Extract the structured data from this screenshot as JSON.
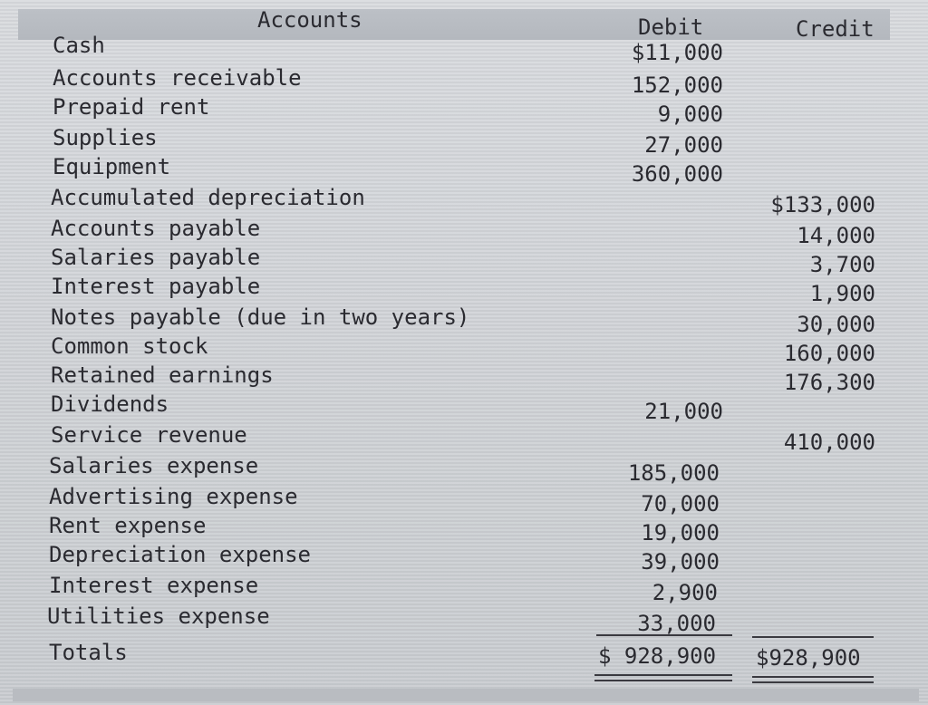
{
  "header": {
    "accounts": "Accounts",
    "debit": "Debit",
    "credit": "Credit"
  },
  "rows": [
    {
      "account": "Cash",
      "debit": "$11,000",
      "credit": ""
    },
    {
      "account": "Accounts receivable",
      "debit": "152,000",
      "credit": ""
    },
    {
      "account": "Prepaid rent",
      "debit": "9,000",
      "credit": ""
    },
    {
      "account": "Supplies",
      "debit": "27,000",
      "credit": ""
    },
    {
      "account": "Equipment",
      "debit": "360,000",
      "credit": ""
    },
    {
      "account": "Accumulated depreciation",
      "debit": "",
      "credit": "$133,000"
    },
    {
      "account": "Accounts payable",
      "debit": "",
      "credit": "14,000"
    },
    {
      "account": "Salaries payable",
      "debit": "",
      "credit": "3,700"
    },
    {
      "account": "Interest payable",
      "debit": "",
      "credit": "1,900"
    },
    {
      "account": "Notes payable (due in two years)",
      "debit": "",
      "credit": "30,000"
    },
    {
      "account": "Common stock",
      "debit": "",
      "credit": "160,000"
    },
    {
      "account": "Retained earnings",
      "debit": "",
      "credit": "176,300"
    },
    {
      "account": "Dividends",
      "debit": "21,000",
      "credit": ""
    },
    {
      "account": "Service revenue",
      "debit": "",
      "credit": "410,000"
    },
    {
      "account": "Salaries expense",
      "debit": "185,000",
      "credit": ""
    },
    {
      "account": "Advertising expense",
      "debit": "70,000",
      "credit": ""
    },
    {
      "account": "Rent expense",
      "debit": "19,000",
      "credit": ""
    },
    {
      "account": "Depreciation expense",
      "debit": "39,000",
      "credit": ""
    },
    {
      "account": "Interest expense",
      "debit": "2,900",
      "credit": ""
    },
    {
      "account": "Utilities expense",
      "debit": "33,000",
      "credit": ""
    }
  ],
  "totals": {
    "label": "Totals",
    "debit": "$ 928,900",
    "credit": "$928,900"
  }
}
